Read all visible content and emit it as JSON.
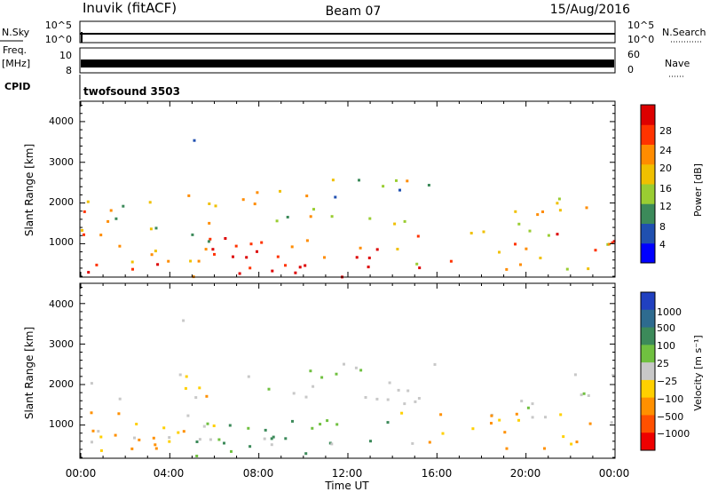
{
  "header": {
    "station": "Inuvik (fitACF)",
    "beam": "Beam 07",
    "date": "15/Aug/2016"
  },
  "strips": {
    "nsky_label": "N.Sky",
    "nsearch_label": "N.Search",
    "nsky_ticks": [
      "10^5",
      "10^0"
    ],
    "nsearch_ticks": [
      "10^5",
      "10^0"
    ],
    "freq_label_1": "Freq.",
    "freq_label_2": "[MHz]",
    "freq_ticks": [
      "10",
      "8"
    ],
    "nave_label": "Nave",
    "nave_ticks": [
      "60",
      "0"
    ],
    "cpid_label": "CPID",
    "cpid_value": "twofsound 3503"
  },
  "x_axis": {
    "label": "Time UT",
    "ticks": [
      "00:00",
      "04:00",
      "08:00",
      "12:00",
      "16:00",
      "20:00",
      "00:00"
    ]
  },
  "chart_data": [
    {
      "type": "heatmap",
      "panel": "power",
      "x": [
        "00:00",
        "04:00",
        "08:00",
        "12:00",
        "16:00",
        "20:00",
        "24:00"
      ],
      "xlabel": "Time UT",
      "ylabel": "Slant Range [km]",
      "y_ticks": [
        1000,
        2000,
        3000,
        4000
      ],
      "ylim": [
        180,
        4500
      ],
      "colorbar": {
        "label": "Power [dB]",
        "ticks": [
          "4",
          "8",
          "12",
          "16",
          "20",
          "24",
          "28"
        ],
        "range": [
          0,
          30
        ],
        "colors": [
          "#0000ff",
          "#2050b0",
          "#3c8a5a",
          "#9acd32",
          "#f0c000",
          "#ff8c00",
          "#ff3300",
          "#dd0000"
        ]
      }
    },
    {
      "type": "heatmap",
      "panel": "velocity",
      "x": [
        "00:00",
        "04:00",
        "08:00",
        "12:00",
        "16:00",
        "20:00",
        "24:00"
      ],
      "xlabel": "Time UT",
      "ylabel": "Slant Range [km]",
      "y_ticks": [
        1000,
        2000,
        3000,
        4000
      ],
      "ylim": [
        180,
        4500
      ],
      "colorbar": {
        "label": "Velocity  [m s⁻¹]",
        "ticks": [
          "1000",
          "500",
          "100",
          "25",
          "−25",
          "−100",
          "−500",
          "−1000"
        ],
        "colors": [
          "#2040c0",
          "#2e6b8f",
          "#3c8a5a",
          "#70c040",
          "#c8c8c8",
          "#ffd000",
          "#ff9000",
          "#ff5000",
          "#ee0000"
        ]
      }
    }
  ]
}
